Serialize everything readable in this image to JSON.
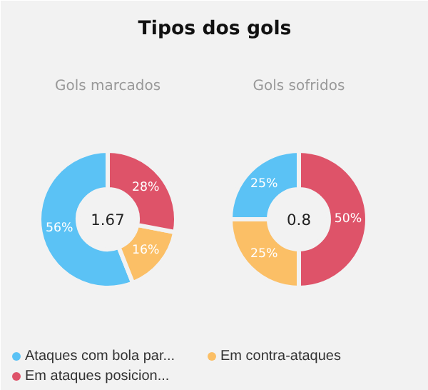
{
  "chart_data": [
    {
      "type": "donut",
      "title": "Tipos dos gols",
      "subtitle": "Gols marcados",
      "categories": [
        "Ataques com bola par...",
        "Em contra-ataques",
        "Em ataques posicion..."
      ],
      "values": [
        56,
        16,
        28
      ],
      "colors": [
        "#5bc2f5",
        "#fbbf66",
        "#de5369"
      ],
      "value_labels": [
        "56%",
        "16%",
        "28%"
      ],
      "annotations": [
        "1.67"
      ],
      "legend": "bottom"
    },
    {
      "type": "donut",
      "subtitle": "Gols sofridos",
      "categories": [
        null,
        null,
        null
      ],
      "values": [
        25,
        25,
        50
      ],
      "colors": [
        "#5bc2f5",
        "#fbbf66",
        "#de5369"
      ],
      "value_labels": [
        "25%",
        "25%",
        "50%"
      ],
      "annotations": [
        "0.8"
      ]
    }
  ]
}
